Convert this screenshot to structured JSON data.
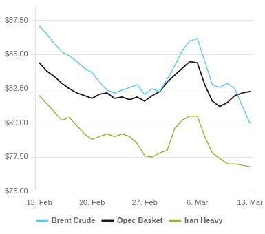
{
  "chart_data": {
    "type": "line",
    "categories": [
      "13. Feb",
      null,
      null,
      null,
      null,
      null,
      null,
      "20. Feb",
      null,
      null,
      null,
      null,
      null,
      null,
      "27. Feb",
      null,
      null,
      null,
      null,
      null,
      null,
      "6. Mar",
      null,
      null,
      null,
      null,
      null,
      null,
      "13. Mar"
    ],
    "series": [
      {
        "name": "Brent Crude",
        "color": "#5bc8f5",
        "values": [
          87.1,
          86.5,
          85.8,
          85.2,
          84.9,
          84.5,
          84.0,
          83.7,
          83.0,
          82.4,
          82.2,
          82.4,
          82.6,
          82.8,
          82.1,
          82.5,
          82.3,
          83.2,
          84.2,
          85.3,
          86.0,
          86.2,
          84.5,
          82.8,
          82.6,
          82.9,
          82.5,
          81.2,
          80.0
        ]
      },
      {
        "name": "Opec Basket",
        "color": "#1a1a1a",
        "values": [
          84.4,
          83.8,
          83.4,
          82.9,
          82.5,
          82.2,
          82.0,
          81.8,
          82.1,
          82.2,
          81.8,
          81.9,
          81.7,
          81.9,
          81.6,
          82.0,
          82.3,
          83.0,
          83.5,
          84.0,
          84.5,
          84.4,
          82.8,
          81.6,
          81.2,
          81.5,
          82.0,
          82.2,
          82.3
        ]
      },
      {
        "name": "Iran Heavy",
        "color": "#8db832",
        "values": [
          82.0,
          81.4,
          80.8,
          80.2,
          80.4,
          79.8,
          79.2,
          78.8,
          79.0,
          79.2,
          79.0,
          79.2,
          79.0,
          78.5,
          77.6,
          77.5,
          77.8,
          78.0,
          79.6,
          80.2,
          80.5,
          80.5,
          79.0,
          77.8,
          77.4,
          77.0,
          77.0,
          76.9,
          76.8
        ]
      }
    ],
    "ylim": [
      75.0,
      88.5
    ],
    "yticks": [
      {
        "value": 75.0,
        "label": "$75.00"
      },
      {
        "value": 77.5,
        "label": "$77.50"
      },
      {
        "value": 80.0,
        "label": "$80.00"
      },
      {
        "value": 82.5,
        "label": "$82.50"
      },
      {
        "value": 85.0,
        "label": "$85.00"
      },
      {
        "value": 87.5,
        "label": "$87.50"
      }
    ],
    "grid": "y",
    "legend": "bottom"
  }
}
